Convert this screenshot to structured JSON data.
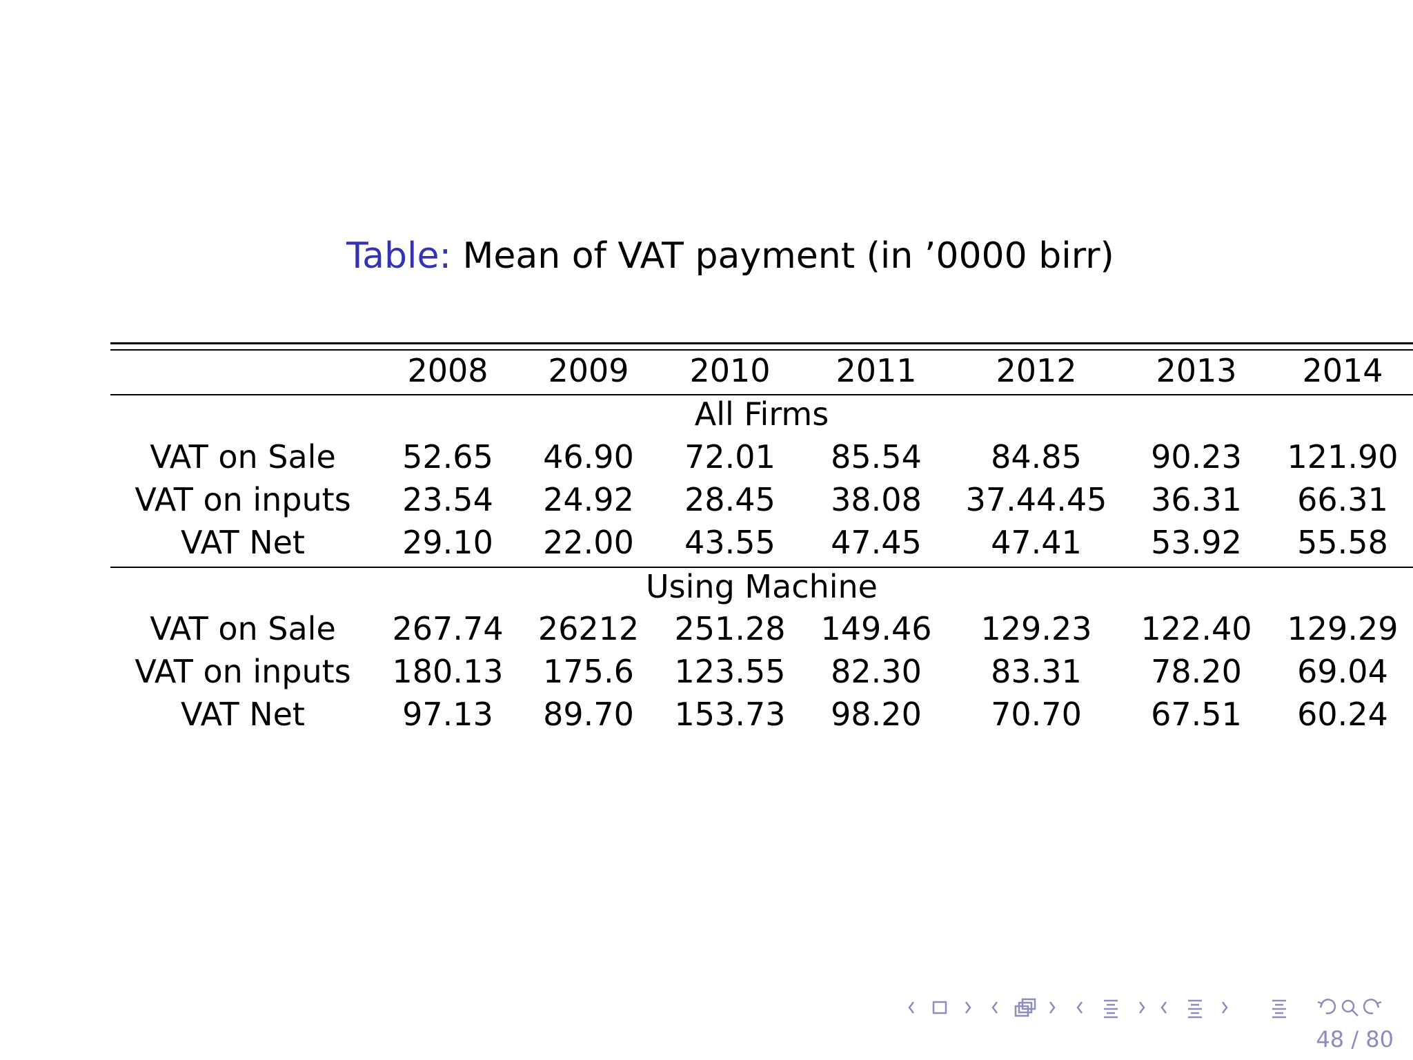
{
  "caption": {
    "label": "Table:",
    "text": "Mean of VAT payment (in ’0000 birr)"
  },
  "table": {
    "columns": [
      "2008",
      "2009",
      "2010",
      "2011",
      "2012",
      "2013",
      "2014"
    ],
    "sections": [
      {
        "title": "All Firms",
        "rows": [
          {
            "label": "VAT on Sale",
            "values": [
              "52.65",
              "46.90",
              "72.01",
              "85.54",
              "84.85",
              "90.23",
              "121.90"
            ]
          },
          {
            "label": "VAT on inputs",
            "values": [
              "23.54",
              "24.92",
              "28.45",
              "38.08",
              "37.44.45",
              "36.31",
              "66.31"
            ]
          },
          {
            "label": "VAT Net",
            "values": [
              "29.10",
              "22.00",
              "43.55",
              "47.45",
              "47.41",
              "53.92",
              "55.58"
            ]
          }
        ]
      },
      {
        "title": "Using Machine",
        "rows": [
          {
            "label": "VAT on Sale",
            "values": [
              "267.74",
              "26212",
              "251.28",
              "149.46",
              "129.23",
              "122.40",
              "129.29"
            ]
          },
          {
            "label": "VAT on inputs",
            "values": [
              "180.13",
              "175.6",
              "123.55",
              "82.30",
              "83.31",
              "78.20",
              "69.04"
            ]
          },
          {
            "label": "VAT Net",
            "values": [
              "97.13",
              "89.70",
              "153.73",
              "98.20",
              "70.70",
              "67.51",
              "60.24"
            ]
          }
        ]
      }
    ]
  },
  "navigation": {
    "icons": [
      "prev-frame-icon",
      "frame-icon",
      "next-frame-icon",
      "prev-subsection-icon",
      "subsection-icon",
      "next-subsection-icon",
      "prev-section-icon",
      "section-icon",
      "next-section-icon",
      "prev-slide-icon",
      "slide-icon",
      "next-slide-icon",
      "toc-icon",
      "back-icon",
      "search-icon",
      "forward-icon"
    ],
    "page_current": "48",
    "page_total": "80",
    "page_label": "48 / 80"
  },
  "colors": {
    "caption_label": "#3333b3",
    "nav": "#8c8cbf"
  }
}
